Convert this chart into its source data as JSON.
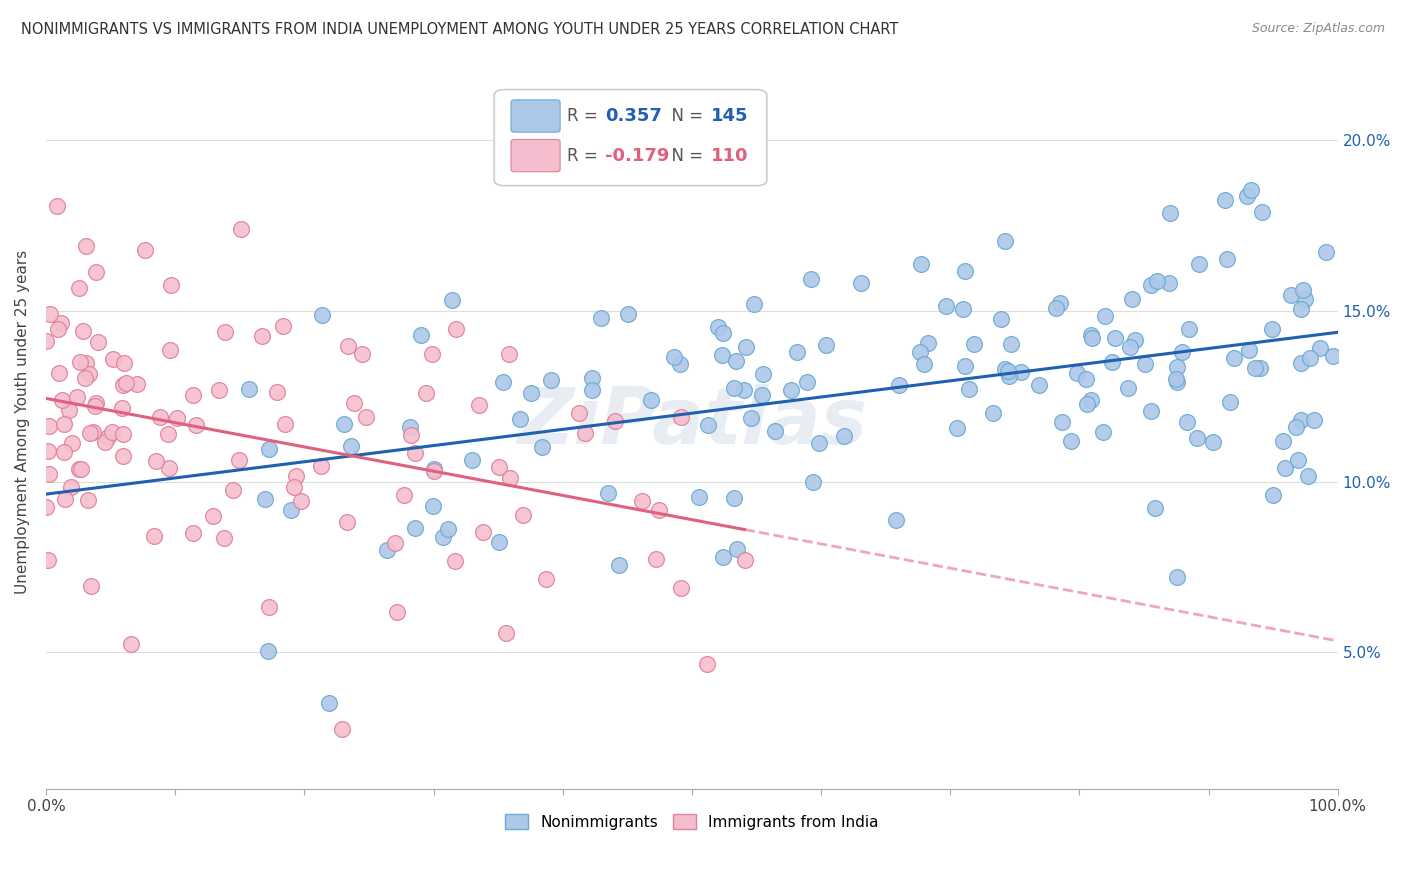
{
  "title": "NONIMMIGRANTS VS IMMIGRANTS FROM INDIA UNEMPLOYMENT AMONG YOUTH UNDER 25 YEARS CORRELATION CHART",
  "source": "Source: ZipAtlas.com",
  "ylabel": "Unemployment Among Youth under 25 years",
  "legend_label_blue": "Nonimmigrants",
  "legend_label_pink": "Immigrants from India",
  "r_blue": 0.357,
  "n_blue": 145,
  "r_pink": -0.179,
  "n_pink": 110,
  "blue_color": "#adc8e8",
  "blue_edge": "#6aaad4",
  "pink_color": "#f5bece",
  "pink_edge": "#e08098",
  "line_blue": "#2060b0",
  "line_pink": "#e06080",
  "watermark": "ZiPatlas",
  "background_color": "#ffffff"
}
